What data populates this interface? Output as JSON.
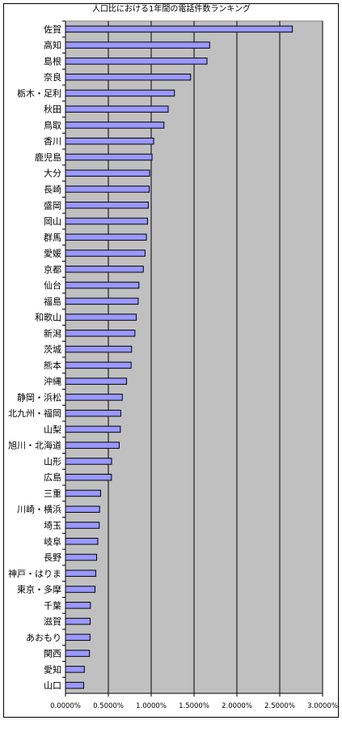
{
  "chart_data": {
    "type": "bar",
    "orientation": "horizontal",
    "title": "人口比における1年間の電話件数ランキング",
    "xlabel": "",
    "ylabel": "",
    "xlim": [
      0,
      0.03
    ],
    "x_ticks": [
      "0.0000%",
      "0.5000%",
      "1.0000%",
      "1.5000%",
      "2.0000%",
      "2.5000%",
      "3.0000%"
    ],
    "grid": "vertical",
    "legend": "none",
    "plot_background": "#c0c0c0",
    "bar_color": "#9999ff",
    "categories": [
      "佐賀",
      "高知",
      "島根",
      "奈良",
      "栃木・足利",
      "秋田",
      "鳥取",
      "香川",
      "鹿児島",
      "大分",
      "長崎",
      "盛岡",
      "岡山",
      "群馬",
      "愛媛",
      "京都",
      "仙台",
      "福島",
      "和歌山",
      "新潟",
      "茨城",
      "熊本",
      "沖縄",
      "静岡・浜松",
      "北九州・福岡",
      "山梨",
      "旭川・北海道",
      "山形",
      "広島",
      "三重",
      "川崎・横浜",
      "埼玉",
      "岐阜",
      "長野",
      "神戸・はりま",
      "東京・多摩",
      "千葉",
      "滋賀",
      "あおもり",
      "関西",
      "愛知",
      "山口"
    ],
    "values": [
      0.02647,
      0.01682,
      0.01651,
      0.0146,
      0.01271,
      0.01198,
      0.01149,
      0.01029,
      0.0101,
      0.00982,
      0.00977,
      0.00966,
      0.00957,
      0.00944,
      0.00928,
      0.00908,
      0.00857,
      0.00848,
      0.00826,
      0.0081,
      0.00771,
      0.00766,
      0.00713,
      0.00663,
      0.00645,
      0.0064,
      0.00627,
      0.00538,
      0.00537,
      0.0041,
      0.00398,
      0.00394,
      0.00377,
      0.00363,
      0.00354,
      0.00345,
      0.00291,
      0.00288,
      0.00286,
      0.0028,
      0.0022,
      0.00212
    ]
  }
}
